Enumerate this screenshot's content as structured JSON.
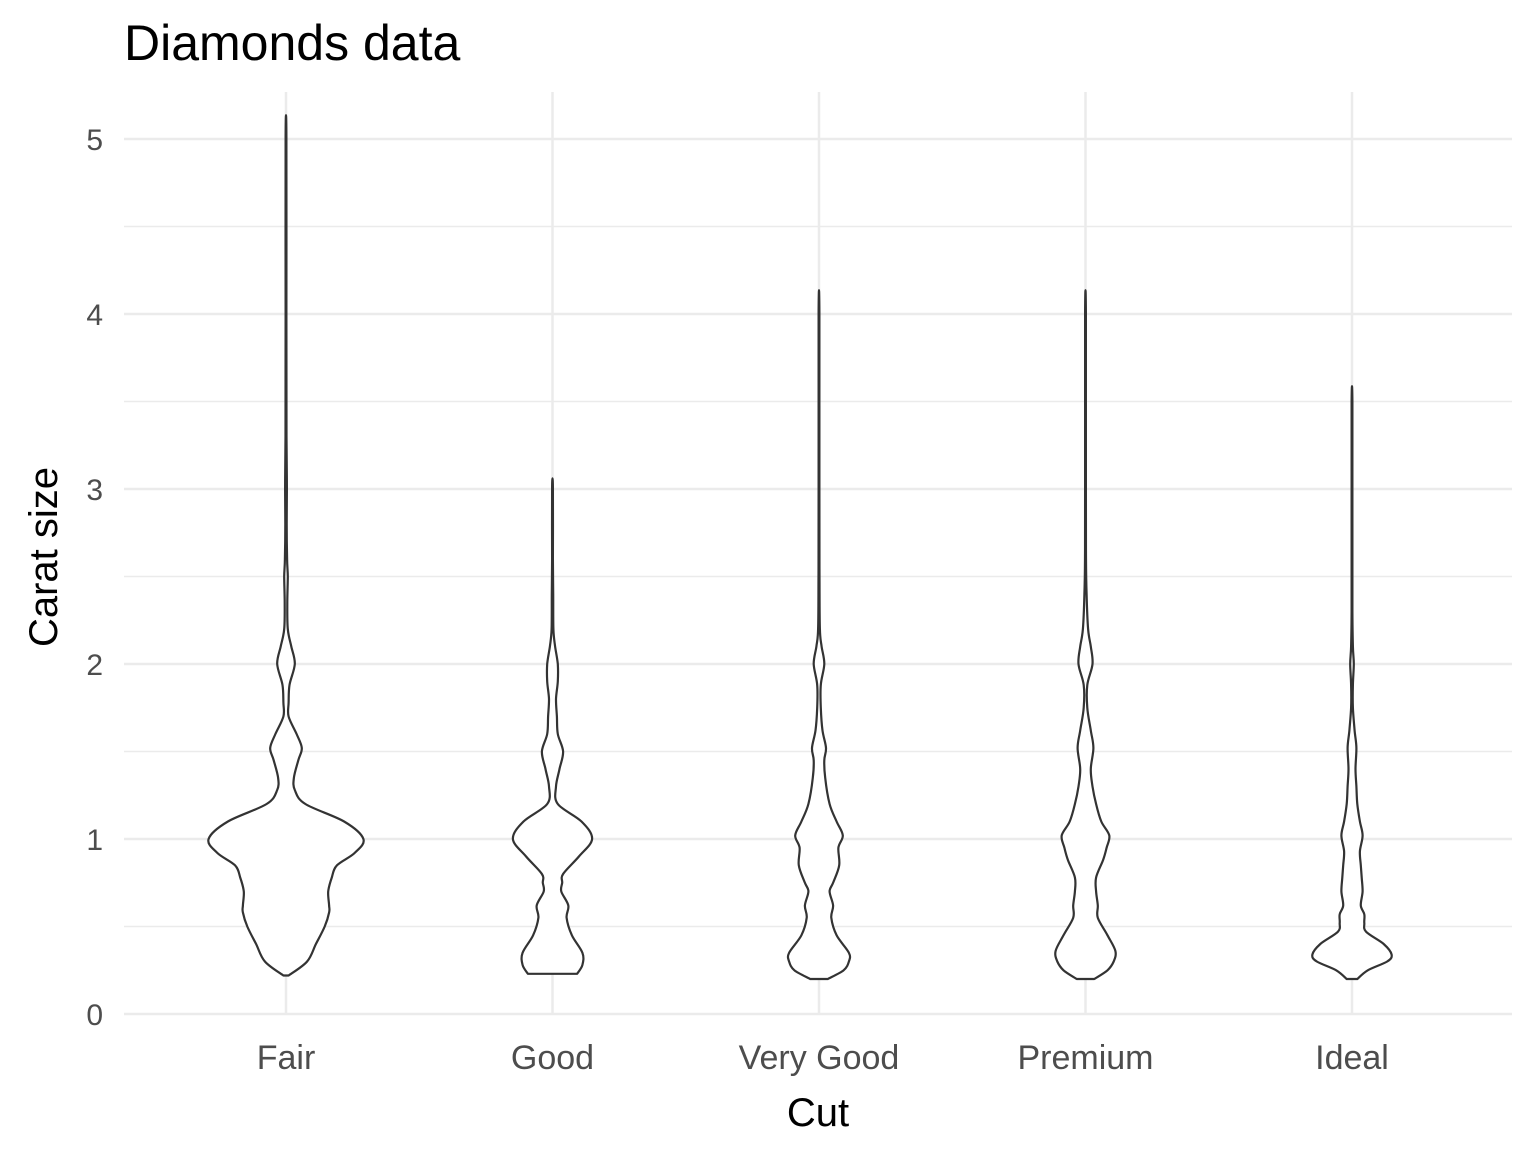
{
  "chart_data": {
    "type": "violin",
    "title": "Diamonds data",
    "xlabel": "Cut",
    "ylabel": "Carat size",
    "categories": [
      "Fair",
      "Good",
      "Very Good",
      "Premium",
      "Ideal"
    ],
    "ylim": [
      0,
      5
    ],
    "yticks": [
      0,
      1,
      2,
      3,
      4,
      5
    ],
    "grid": true,
    "colors": {
      "outline": "#333333",
      "grid": "#ebebeb",
      "fill": "#ffffff"
    },
    "violins": [
      {
        "category": "Fair",
        "min": 0.22,
        "max": 5.01,
        "profile": [
          [
            0.22,
            0.03
          ],
          [
            0.3,
            0.24
          ],
          [
            0.4,
            0.34
          ],
          [
            0.5,
            0.44
          ],
          [
            0.58,
            0.49
          ],
          [
            0.62,
            0.49
          ],
          [
            0.7,
            0.48
          ],
          [
            0.78,
            0.52
          ],
          [
            0.85,
            0.58
          ],
          [
            0.92,
            0.78
          ],
          [
            1.0,
            0.88
          ],
          [
            1.1,
            0.66
          ],
          [
            1.2,
            0.22
          ],
          [
            1.28,
            0.1
          ],
          [
            1.35,
            0.09
          ],
          [
            1.45,
            0.14
          ],
          [
            1.52,
            0.18
          ],
          [
            1.6,
            0.12
          ],
          [
            1.7,
            0.03
          ],
          [
            1.78,
            0.03
          ],
          [
            1.88,
            0.04
          ],
          [
            2.0,
            0.1
          ],
          [
            2.1,
            0.06
          ],
          [
            2.2,
            0.02
          ],
          [
            2.35,
            0.015
          ],
          [
            2.5,
            0.02
          ],
          [
            2.6,
            0.012
          ],
          [
            2.8,
            0.008
          ],
          [
            3.0,
            0.01
          ],
          [
            3.3,
            0.006
          ],
          [
            4.0,
            0.005
          ],
          [
            5.01,
            0.005
          ]
        ]
      },
      {
        "category": "Good",
        "min": 0.23,
        "max": 3.01,
        "profile": [
          [
            0.23,
            0.28
          ],
          [
            0.28,
            0.34
          ],
          [
            0.35,
            0.34
          ],
          [
            0.45,
            0.22
          ],
          [
            0.55,
            0.16
          ],
          [
            0.62,
            0.18
          ],
          [
            0.7,
            0.1
          ],
          [
            0.75,
            0.11
          ],
          [
            0.8,
            0.12
          ],
          [
            0.9,
            0.3
          ],
          [
            1.0,
            0.45
          ],
          [
            1.1,
            0.33
          ],
          [
            1.2,
            0.06
          ],
          [
            1.3,
            0.04
          ],
          [
            1.4,
            0.08
          ],
          [
            1.5,
            0.12
          ],
          [
            1.6,
            0.06
          ],
          [
            1.7,
            0.05
          ],
          [
            1.8,
            0.04
          ],
          [
            1.9,
            0.06
          ],
          [
            2.0,
            0.06
          ],
          [
            2.1,
            0.03
          ],
          [
            2.2,
            0.01
          ],
          [
            2.4,
            0.008
          ],
          [
            2.6,
            0.005
          ],
          [
            3.01,
            0.005
          ]
        ]
      },
      {
        "category": "Very Good",
        "min": 0.2,
        "max": 4.01,
        "profile": [
          [
            0.2,
            0.1
          ],
          [
            0.25,
            0.28
          ],
          [
            0.3,
            0.34
          ],
          [
            0.35,
            0.34
          ],
          [
            0.45,
            0.2
          ],
          [
            0.55,
            0.14
          ],
          [
            0.62,
            0.16
          ],
          [
            0.7,
            0.12
          ],
          [
            0.75,
            0.16
          ],
          [
            0.85,
            0.23
          ],
          [
            0.95,
            0.22
          ],
          [
            1.02,
            0.27
          ],
          [
            1.1,
            0.2
          ],
          [
            1.2,
            0.12
          ],
          [
            1.35,
            0.07
          ],
          [
            1.45,
            0.06
          ],
          [
            1.52,
            0.08
          ],
          [
            1.62,
            0.04
          ],
          [
            1.75,
            0.02
          ],
          [
            1.88,
            0.02
          ],
          [
            2.0,
            0.06
          ],
          [
            2.1,
            0.03
          ],
          [
            2.2,
            0.01
          ],
          [
            2.5,
            0.006
          ],
          [
            3.0,
            0.004
          ],
          [
            4.01,
            0.004
          ]
        ]
      },
      {
        "category": "Premium",
        "min": 0.2,
        "max": 4.01,
        "profile": [
          [
            0.2,
            0.1
          ],
          [
            0.25,
            0.25
          ],
          [
            0.3,
            0.32
          ],
          [
            0.36,
            0.34
          ],
          [
            0.45,
            0.25
          ],
          [
            0.55,
            0.14
          ],
          [
            0.62,
            0.14
          ],
          [
            0.7,
            0.12
          ],
          [
            0.78,
            0.12
          ],
          [
            0.88,
            0.2
          ],
          [
            0.95,
            0.24
          ],
          [
            1.02,
            0.27
          ],
          [
            1.1,
            0.18
          ],
          [
            1.2,
            0.12
          ],
          [
            1.3,
            0.08
          ],
          [
            1.4,
            0.06
          ],
          [
            1.52,
            0.09
          ],
          [
            1.62,
            0.06
          ],
          [
            1.75,
            0.02
          ],
          [
            1.88,
            0.02
          ],
          [
            2.0,
            0.08
          ],
          [
            2.1,
            0.06
          ],
          [
            2.2,
            0.03
          ],
          [
            2.4,
            0.012
          ],
          [
            2.6,
            0.006
          ],
          [
            3.0,
            0.004
          ],
          [
            4.01,
            0.004
          ]
        ]
      },
      {
        "category": "Ideal",
        "min": 0.2,
        "max": 3.5,
        "profile": [
          [
            0.2,
            0.06
          ],
          [
            0.25,
            0.18
          ],
          [
            0.3,
            0.4
          ],
          [
            0.34,
            0.45
          ],
          [
            0.4,
            0.36
          ],
          [
            0.47,
            0.16
          ],
          [
            0.52,
            0.14
          ],
          [
            0.57,
            0.14
          ],
          [
            0.62,
            0.1
          ],
          [
            0.7,
            0.12
          ],
          [
            0.78,
            0.11
          ],
          [
            0.85,
            0.1
          ],
          [
            0.93,
            0.09
          ],
          [
            1.02,
            0.12
          ],
          [
            1.1,
            0.09
          ],
          [
            1.2,
            0.06
          ],
          [
            1.3,
            0.05
          ],
          [
            1.4,
            0.04
          ],
          [
            1.52,
            0.05
          ],
          [
            1.62,
            0.03
          ],
          [
            1.75,
            0.01
          ],
          [
            1.88,
            0.01
          ],
          [
            2.0,
            0.02
          ],
          [
            2.1,
            0.01
          ],
          [
            2.3,
            0.005
          ],
          [
            2.8,
            0.004
          ],
          [
            3.5,
            0.004
          ]
        ]
      }
    ]
  }
}
